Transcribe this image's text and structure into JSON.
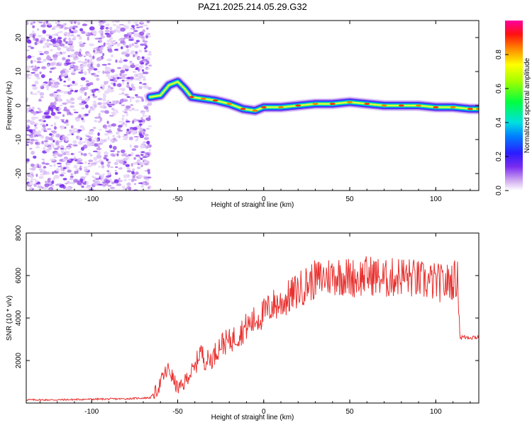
{
  "title": "PAZ1.2025.214.05.29.G32",
  "chart_data": [
    {
      "type": "heatmap",
      "xlabel": "Height of straight line (km)",
      "ylabel": "Frequency (Hz)",
      "xlim": [
        -138,
        125
      ],
      "ylim": [
        -25,
        25
      ],
      "x_ticks": [
        -100,
        -50,
        0,
        50,
        100
      ],
      "y_ticks": [
        -20,
        -10,
        0,
        10,
        20
      ],
      "colorbar": {
        "label": "Normalized spectral amplitude",
        "range": [
          0.0,
          1.0
        ],
        "ticks": [
          0.0,
          0.2,
          0.4,
          0.6,
          0.8
        ],
        "tick_labels": [
          "0.0",
          "0.2",
          "0.4",
          "0.6",
          "0.8"
        ]
      },
      "noise_region_x": [
        -138,
        -66
      ],
      "ridge": [
        {
          "x": -66,
          "y": 2.5
        },
        {
          "x": -60,
          "y": 3
        },
        {
          "x": -55,
          "y": 6
        },
        {
          "x": -50,
          "y": 7
        },
        {
          "x": -46,
          "y": 5
        },
        {
          "x": -42,
          "y": 2.5
        },
        {
          "x": -35,
          "y": 2
        },
        {
          "x": -28,
          "y": 1.5
        },
        {
          "x": -20,
          "y": 0.5
        },
        {
          "x": -12,
          "y": -1
        },
        {
          "x": -5,
          "y": -1.5
        },
        {
          "x": 0,
          "y": -0.5
        },
        {
          "x": 10,
          "y": -0.5
        },
        {
          "x": 20,
          "y": 0
        },
        {
          "x": 30,
          "y": 0.5
        },
        {
          "x": 40,
          "y": 0.5
        },
        {
          "x": 50,
          "y": 1
        },
        {
          "x": 60,
          "y": 0.5
        },
        {
          "x": 70,
          "y": 0
        },
        {
          "x": 80,
          "y": 0
        },
        {
          "x": 90,
          "y": 0
        },
        {
          "x": 100,
          "y": -0.5
        },
        {
          "x": 110,
          "y": -0.5
        },
        {
          "x": 120,
          "y": -1
        },
        {
          "x": 125,
          "y": -1
        }
      ]
    },
    {
      "type": "line",
      "xlabel": "Height of straight line (km)",
      "ylabel": "SNR (10 * v/v)",
      "xlim": [
        -138,
        125
      ],
      "ylim": [
        0,
        8000
      ],
      "x_ticks": [
        -100,
        -50,
        0,
        50,
        100
      ],
      "y_ticks": [
        2000,
        4000,
        6000,
        8000
      ],
      "color": "#e8302e",
      "series": [
        {
          "x": [
            -138,
            -120,
            -100,
            -80,
            -66,
            -62,
            -58,
            -55,
            -52,
            -50,
            -47,
            -44,
            -40,
            -37,
            -34,
            -30,
            -25,
            -20,
            -15,
            -10,
            -5,
            0,
            5,
            10,
            15,
            20,
            25,
            30,
            35,
            40,
            45,
            50,
            55,
            60,
            65,
            70,
            75,
            80,
            85,
            90,
            95,
            100,
            105,
            110,
            113,
            114,
            118,
            125
          ],
          "y": [
            150,
            150,
            180,
            200,
            250,
            600,
            1300,
            1600,
            1000,
            700,
            800,
            1300,
            1600,
            2500,
            2000,
            2100,
            2800,
            2900,
            3200,
            3600,
            3900,
            4200,
            4600,
            4700,
            5000,
            5300,
            5600,
            5800,
            5900,
            6000,
            6000,
            5900,
            5900,
            6000,
            6000,
            5800,
            5900,
            6000,
            5900,
            5800,
            5700,
            5700,
            5600,
            5800,
            5800,
            3100,
            3100,
            3100
          ]
        }
      ]
    }
  ]
}
